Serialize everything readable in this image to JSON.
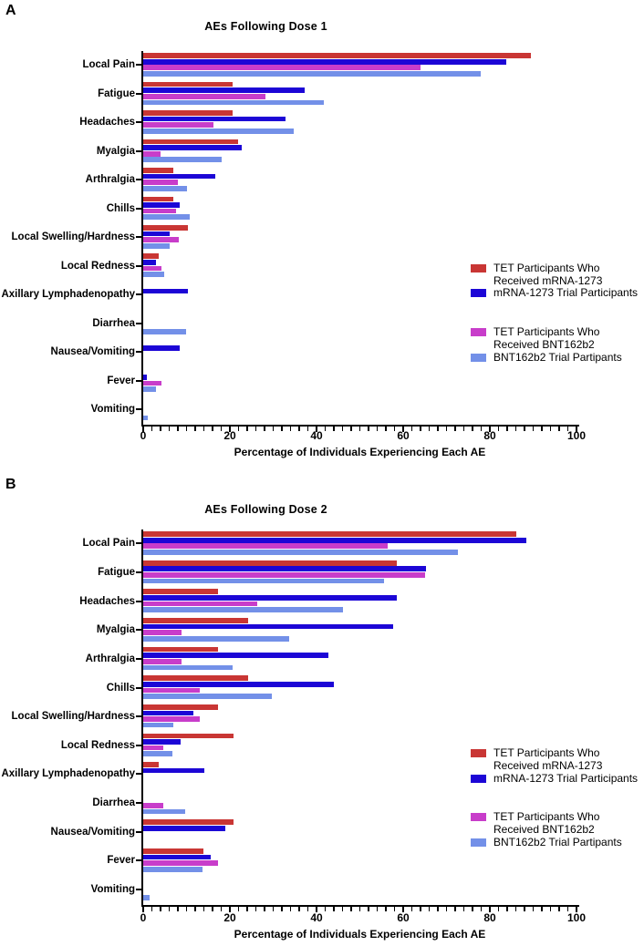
{
  "legend": {
    "items": [
      {
        "series_index": 0,
        "lines": [
          "TET Participants Who",
          "Received mRNA-1273"
        ]
      },
      {
        "series_index": 1,
        "lines": [
          "mRNA-1273 Trial Participants"
        ]
      },
      {
        "series_index": 2,
        "lines": [
          "TET Participants Who",
          "Received BNT162b2"
        ]
      },
      {
        "series_index": 3,
        "lines": [
          "BNT162b2 Trial Partipants"
        ]
      }
    ]
  },
  "chart_data": [
    {
      "type": "bar",
      "orientation": "horizontal",
      "panel_label": "A",
      "title": "AEs Following Dose 1",
      "xlabel": "Percentage of Individuals Experiencing Each AE",
      "xlim": [
        0,
        100
      ],
      "xticks": [
        0,
        20,
        40,
        60,
        80,
        100
      ],
      "minor_tick_step": 2,
      "grid": false,
      "legend_position": "right",
      "categories": [
        "Local Pain",
        "Fatigue",
        "Headaches",
        "Myalgia",
        "Arthralgia",
        "Chills",
        "Local Swelling/Hardness",
        "Local Redness",
        "Axillary Lymphadenopathy",
        "Diarrhea",
        "Nausea/Vomiting",
        "Fever",
        "Vomiting"
      ],
      "series": [
        {
          "name": "TET Participants Who Received mRNA-1273",
          "color": "#c93634",
          "values": [
            89.5,
            20.7,
            20.7,
            21.9,
            6.9,
            7.0,
            10.4,
            3.6,
            0,
            0,
            0,
            0,
            0
          ]
        },
        {
          "name": "mRNA-1273 Trial Participants",
          "color": "#1c06d6",
          "values": [
            83.7,
            37.2,
            32.8,
            22.7,
            16.6,
            8.4,
            6.2,
            2.9,
            10.3,
            0,
            8.4,
            0.8,
            0
          ]
        },
        {
          "name": "TET Participants Who Received BNT162b2",
          "color": "#c83dca",
          "values": [
            64.0,
            28.1,
            16.1,
            4.0,
            8.0,
            7.6,
            8.1,
            4.3,
            0,
            0,
            0,
            4.1,
            0
          ]
        },
        {
          "name": "BNT162b2 Trial Partipants",
          "color": "#7390e8",
          "values": [
            77.8,
            41.7,
            34.7,
            18.1,
            10.0,
            10.7,
            6.1,
            4.8,
            0,
            9.9,
            0,
            2.9,
            1.1
          ]
        }
      ]
    },
    {
      "type": "bar",
      "orientation": "horizontal",
      "panel_label": "B",
      "title": "AEs  Following Dose 2",
      "xlabel": "Percentage of Individuals Experiencing Each AE",
      "xlim": [
        0,
        100
      ],
      "xticks": [
        0,
        20,
        40,
        60,
        80,
        100
      ],
      "minor_tick_step": 2,
      "grid": false,
      "legend_position": "right",
      "categories": [
        "Local Pain",
        "Fatigue",
        "Headaches",
        "Myalgia",
        "Arthralgia",
        "Chills",
        "Local Swelling/Hardness",
        "Local Redness",
        "Axillary Lymphadenopathy",
        "Diarrhea",
        "Nausea/Vomiting",
        "Fever",
        "Vomiting"
      ],
      "series": [
        {
          "name": "TET Participants Who Received mRNA-1273",
          "color": "#c93634",
          "values": [
            86.1,
            58.5,
            17.3,
            24.3,
            17.3,
            24.3,
            17.3,
            20.8,
            3.6,
            0,
            20.8,
            13.8,
            0
          ]
        },
        {
          "name": "mRNA-1273 Trial Participants",
          "color": "#1c06d6",
          "values": [
            88.4,
            65.2,
            58.6,
            57.7,
            42.7,
            43.9,
            11.6,
            8.6,
            14.1,
            0,
            18.9,
            15.6,
            0
          ]
        },
        {
          "name": "TET Participants Who Received BNT162b2",
          "color": "#c83dca",
          "values": [
            56.5,
            65.0,
            26.2,
            8.8,
            8.8,
            13.1,
            13.0,
            4.6,
            0,
            4.6,
            0,
            17.3,
            0
          ]
        },
        {
          "name": "BNT162b2 Trial Partipants",
          "color": "#7390e8",
          "values": [
            72.6,
            55.5,
            46.1,
            33.6,
            20.6,
            29.6,
            6.9,
            6.7,
            0,
            9.6,
            0,
            13.6,
            1.5
          ]
        }
      ]
    }
  ]
}
